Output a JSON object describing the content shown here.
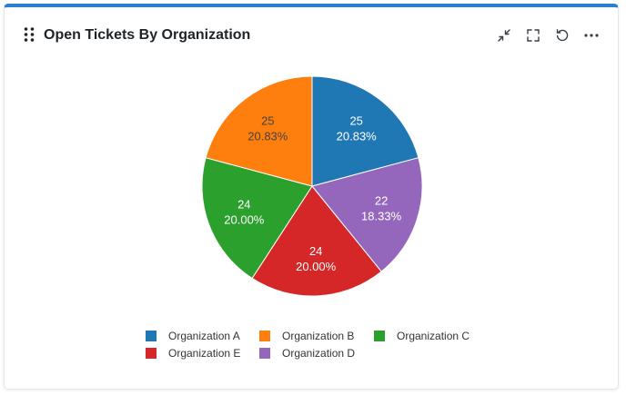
{
  "widget": {
    "title": "Open Tickets By Organization",
    "accent_color": "#2b7fd1",
    "toolbar": {
      "icons": [
        "minimize-icon",
        "fullscreen-icon",
        "refresh-icon",
        "more-icon"
      ]
    }
  },
  "chart_data": {
    "type": "pie",
    "title": "Open Tickets By Organization",
    "slices": [
      {
        "label": "Organization A",
        "value": 25,
        "percent": "20.83%",
        "color": "#1f77b4"
      },
      {
        "label": "Organization D",
        "value": 22,
        "percent": "18.33%",
        "color": "#9467bd"
      },
      {
        "label": "Organization E",
        "value": 24,
        "percent": "20.00%",
        "color": "#d62728"
      },
      {
        "label": "Organization C",
        "value": 24,
        "percent": "20.00%",
        "color": "#2ca02c"
      },
      {
        "label": "Organization B",
        "value": 25,
        "percent": "20.83%",
        "color": "#ff7f0e"
      }
    ],
    "legend": {
      "placement": "bottom",
      "order": [
        "Organization A",
        "Organization B",
        "Organization C",
        "Organization E",
        "Organization D"
      ]
    }
  }
}
